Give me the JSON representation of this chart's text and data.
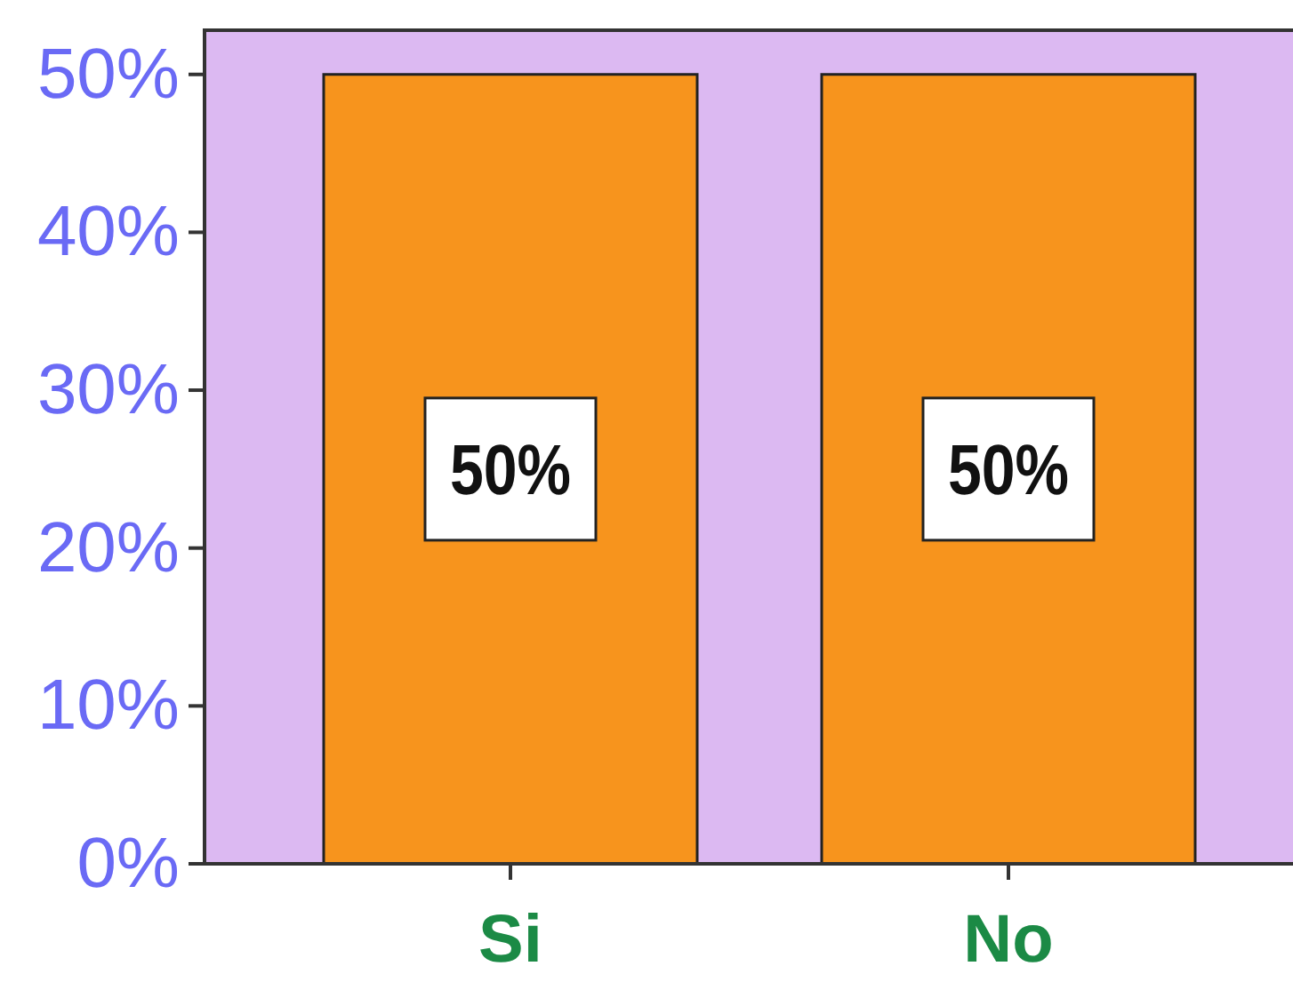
{
  "chart_data": {
    "type": "bar",
    "categories": [
      "Si",
      "No"
    ],
    "values": [
      50,
      50
    ],
    "color": "#f7941d",
    "ylim": [
      0,
      52.8
    ],
    "yticks": [
      {
        "value": 0,
        "label": "0%"
      },
      {
        "value": 10,
        "label": "10%"
      },
      {
        "value": 20,
        "label": "20%"
      },
      {
        "value": 30,
        "label": "30%"
      },
      {
        "value": 40,
        "label": "40%"
      },
      {
        "value": 50,
        "label": "50%"
      }
    ],
    "data_labels": true,
    "value_labels": [
      "50%",
      "50%"
    ],
    "grid": false
  }
}
